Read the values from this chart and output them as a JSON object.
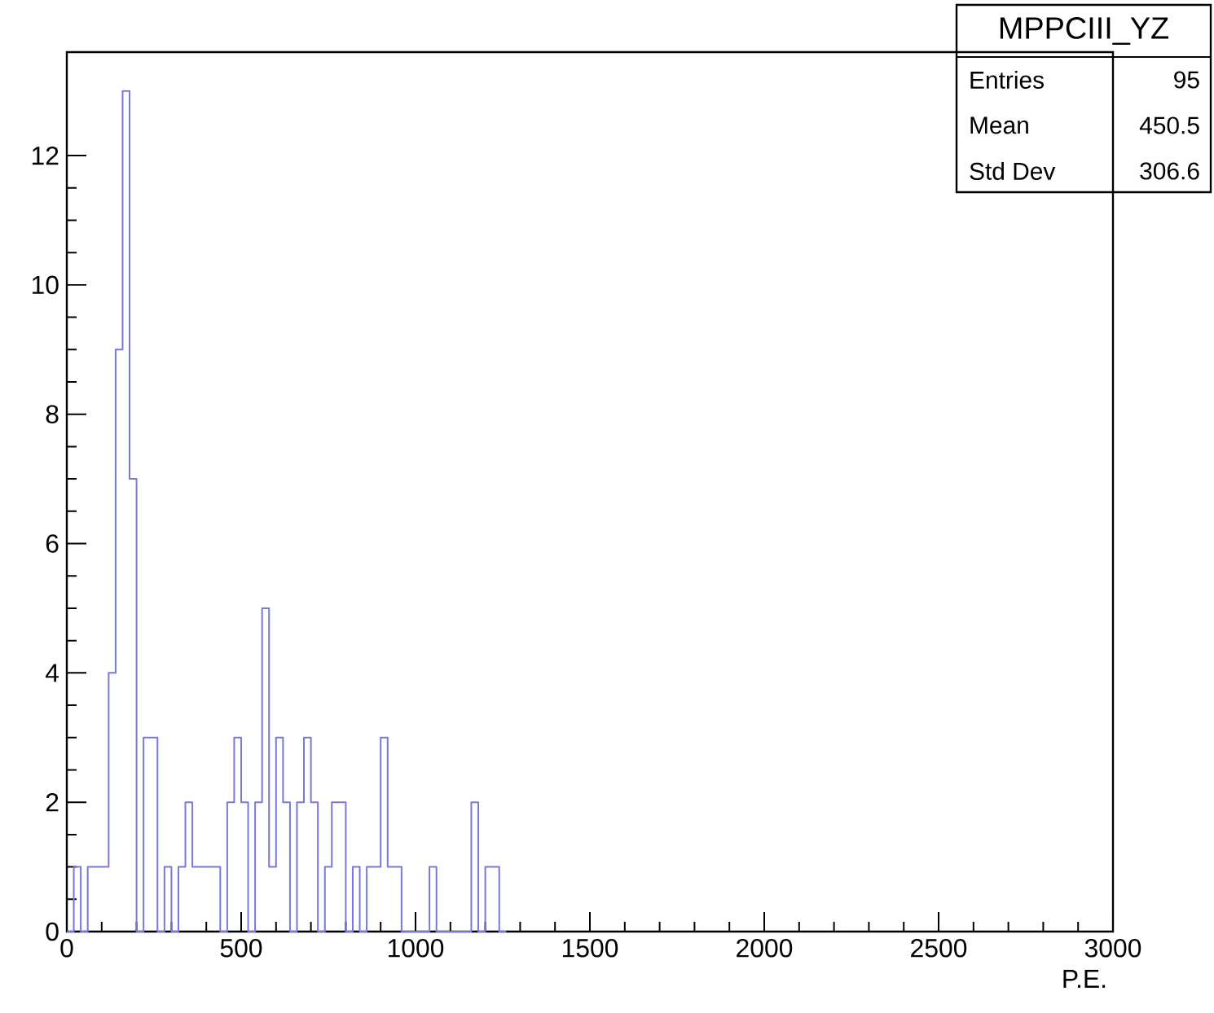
{
  "chart_data": {
    "type": "histogram",
    "xlabel": "P.E.",
    "annotations": [
      "MPPCIII_YZ",
      "Entries",
      "95",
      "Mean",
      "450.5",
      "Std Dev",
      "306.6"
    ],
    "bins": [
      0,
      20,
      40,
      60,
      80,
      100,
      120,
      140,
      160,
      180,
      200,
      220,
      240,
      260,
      280,
      300,
      320,
      340,
      360,
      380,
      400,
      420,
      440,
      460,
      480,
      500,
      520,
      540,
      560,
      580,
      600,
      620,
      640,
      660,
      680,
      700,
      720,
      740,
      760,
      780,
      800,
      820,
      840,
      860,
      880,
      900,
      920,
      940,
      960,
      980,
      1000,
      1020,
      1040,
      1060,
      1080,
      1100,
      1120,
      1140,
      1160,
      1180,
      1200,
      1220,
      1240,
      1260
    ],
    "values": [
      0,
      1,
      0,
      1,
      1,
      1,
      4,
      9,
      13,
      7,
      0,
      3,
      3,
      0,
      1,
      0,
      1,
      2,
      1,
      1,
      1,
      1,
      0,
      2,
      3,
      2,
      0,
      2,
      5,
      1,
      3,
      2,
      0,
      2,
      3,
      2,
      0,
      1,
      2,
      2,
      0,
      1,
      0,
      1,
      1,
      3,
      1,
      1,
      0,
      0,
      0,
      0,
      1,
      0,
      0,
      0,
      0,
      0,
      2,
      0,
      1,
      1,
      0
    ],
    "color": "#7777dd",
    "xlim": [
      0,
      3000
    ],
    "ylim": [
      0,
      13.6
    ],
    "xticks": [
      0,
      500,
      1000,
      1500,
      2000,
      2500,
      3000
    ],
    "yticks": [
      0,
      2,
      4,
      6,
      8,
      10,
      12
    ]
  }
}
